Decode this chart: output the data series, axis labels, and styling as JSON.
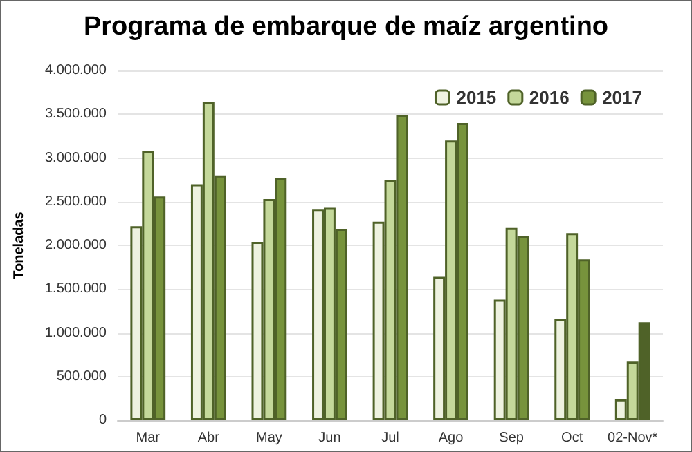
{
  "chart_data": {
    "type": "bar",
    "title": "Programa de embarque de maíz argentino",
    "ylabel": "Toneladas",
    "categories": [
      "Mar",
      "Abr",
      "May",
      "Jun",
      "Jul",
      "Ago",
      "Sep",
      "Oct",
      "02-Nov*"
    ],
    "series": [
      {
        "name": "2015",
        "color": "#eef2e0",
        "values": [
          2220000,
          2700000,
          2040000,
          2410000,
          2270000,
          1640000,
          1380000,
          1160000,
          240000
        ]
      },
      {
        "name": "2016",
        "color": "#c4d89a",
        "values": [
          3080000,
          3640000,
          2530000,
          2430000,
          2750000,
          3200000,
          2200000,
          2140000,
          670000
        ]
      },
      {
        "name": "2017",
        "color": "#77933c",
        "colors": [
          "#77933c",
          "#77933c",
          "#77933c",
          "#77933c",
          "#77933c",
          "#77933c",
          "#77933c",
          "#77933c",
          "#4f6228"
        ],
        "values": [
          2560000,
          2800000,
          2770000,
          2190000,
          3490000,
          3400000,
          2110000,
          1840000,
          1120000
        ]
      }
    ],
    "ylim": [
      0,
      4000000
    ],
    "yticks": [
      {
        "value": 0,
        "label": "0"
      },
      {
        "value": 500000,
        "label": "500.000"
      },
      {
        "value": 1000000,
        "label": "1.000.000"
      },
      {
        "value": 1500000,
        "label": "1.500.000"
      },
      {
        "value": 2000000,
        "label": "2.000.000"
      },
      {
        "value": 2500000,
        "label": "2.500.000"
      },
      {
        "value": 3000000,
        "label": "3.000.000"
      },
      {
        "value": 3500000,
        "label": "3.500.000"
      },
      {
        "value": 4000000,
        "label": "4.000.000"
      }
    ],
    "grid": "y",
    "legend": "top right"
  }
}
